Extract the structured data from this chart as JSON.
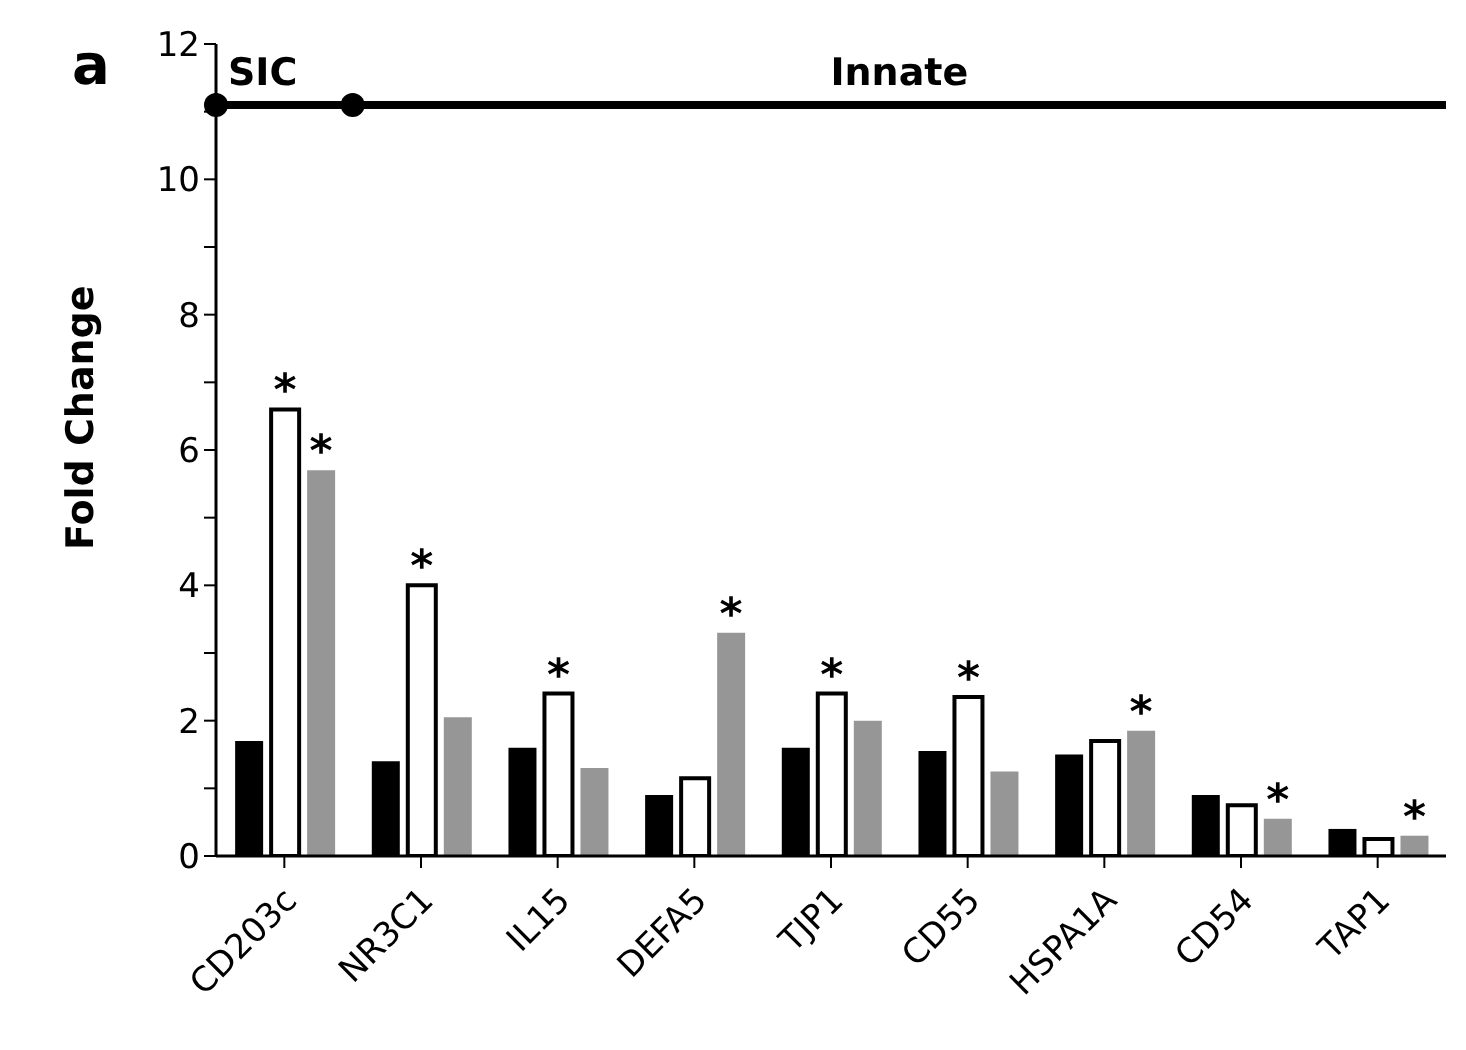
{
  "chart_data": {
    "type": "bar",
    "ylabel": "Fold Change",
    "categories": [
      "CD203c",
      "NR3C1",
      "IL15",
      "DEFA5",
      "TJP1",
      "CD55",
      "HSPA1A",
      "CD54",
      "TAP1"
    ],
    "series": [
      {
        "color": "#000000",
        "values": [
          1.7,
          1.4,
          1.6,
          0.9,
          1.6,
          1.55,
          1.5,
          0.9,
          0.4
        ]
      },
      {
        "color": "#ffffff",
        "values": [
          6.6,
          4.0,
          2.4,
          1.15,
          2.4,
          2.35,
          1.7,
          0.75,
          0.25
        ],
        "value_labels": [
          "*",
          "*",
          "*",
          null,
          "*",
          "*",
          null,
          null,
          null
        ]
      },
      {
        "color": "#969696",
        "values": [
          5.7,
          2.05,
          1.3,
          3.3,
          2.0,
          1.25,
          1.85,
          0.55,
          0.3
        ],
        "value_labels": [
          "*",
          null,
          null,
          "*",
          null,
          null,
          "*",
          "*",
          "*"
        ]
      }
    ],
    "ylim": [
      0,
      12
    ],
    "yticks": [
      0,
      {
        "value": 1,
        "label": null
      },
      2,
      {
        "value": 3,
        "label": null
      },
      4,
      {
        "value": 5,
        "label": null
      },
      6,
      {
        "value": 7,
        "label": null
      },
      8,
      {
        "value": 9,
        "label": null
      },
      10,
      {
        "value": 11,
        "label": null
      },
      12
    ],
    "ref_lines": [
      {
        "axis": "y",
        "value": 11.1,
        "color": "#000000"
      }
    ],
    "grid": false,
    "legend": false,
    "annotations": [
      "a",
      "SIC",
      "Innate"
    ]
  }
}
